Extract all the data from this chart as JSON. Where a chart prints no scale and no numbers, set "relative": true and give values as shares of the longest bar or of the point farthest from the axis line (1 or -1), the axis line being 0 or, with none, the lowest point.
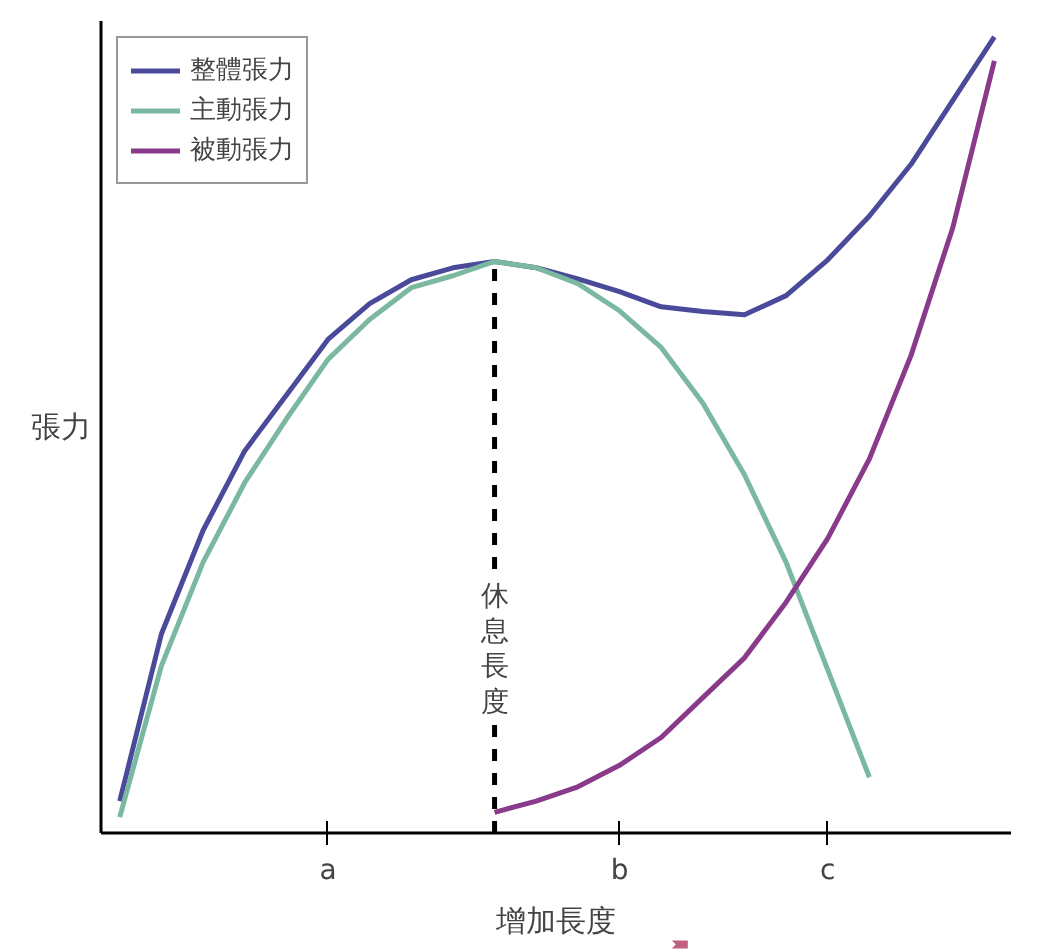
{
  "chart_data": {
    "type": "line",
    "relative": true,
    "xlabel": "增加長度",
    "ylabel": "張力",
    "categories": [
      null,
      null,
      null,
      null,
      null,
      "a",
      null,
      null,
      null,
      null,
      null,
      null,
      "b",
      null,
      null,
      null,
      null,
      "c",
      null,
      null,
      null,
      null
    ],
    "tick_labels": "x",
    "legend": "top left",
    "line_style": "solid",
    "annotations": [
      "休息長度"
    ],
    "series": [
      {
        "name": "整體張力",
        "color": "#4a4a9a",
        "values": [
          0.04,
          0.25,
          0.38,
          0.48,
          0.55,
          0.62,
          0.665,
          0.695,
          0.71,
          0.718,
          0.71,
          0.696,
          0.68,
          0.661,
          0.655,
          0.651,
          0.675,
          0.72,
          0.775,
          0.84,
          0.92,
          1
        ]
      },
      {
        "name": "主動張力",
        "color": "#7ab8a0",
        "values": [
          0.02,
          0.21,
          0.34,
          0.44,
          0.52,
          0.595,
          0.645,
          0.685,
          0.7,
          0.718,
          0.71,
          0.69,
          0.656,
          0.61,
          0.54,
          0.45,
          0.34,
          0.205,
          0.07,
          null,
          null,
          null
        ]
      },
      {
        "name": "被動張力",
        "color": "#8a3a8a",
        "values": [
          null,
          null,
          null,
          null,
          null,
          null,
          null,
          null,
          null,
          0.026,
          0.04,
          0.058,
          0.085,
          0.12,
          0.17,
          0.22,
          0.29,
          0.37,
          0.47,
          0.6,
          0.76,
          0.97
        ]
      }
    ]
  }
}
